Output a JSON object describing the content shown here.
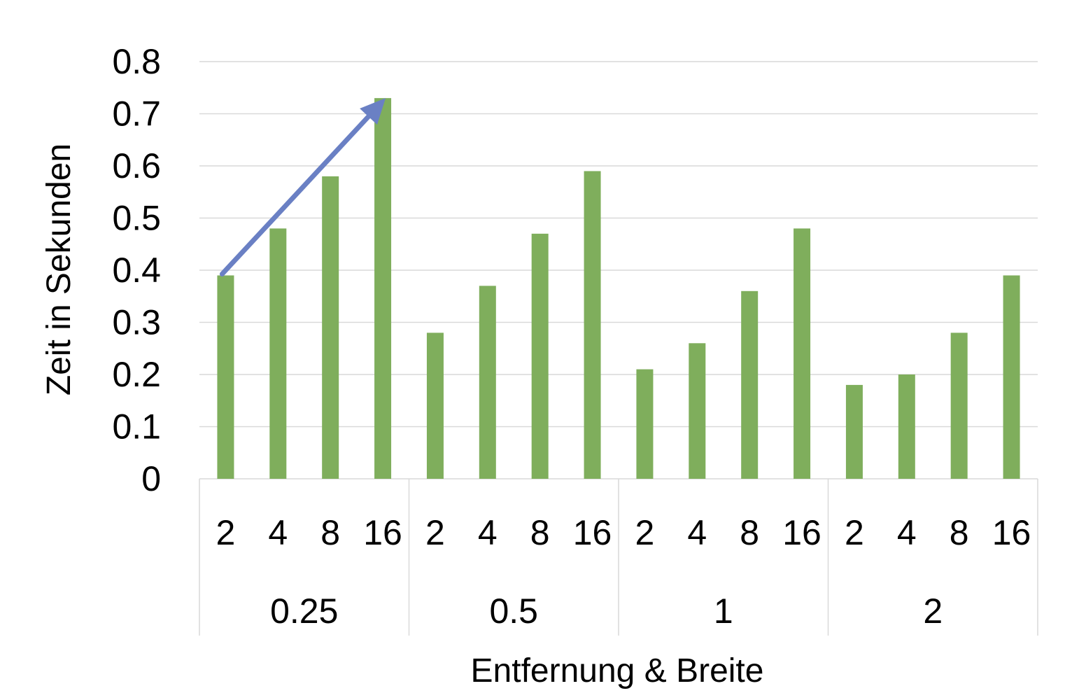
{
  "chart_data": {
    "type": "bar",
    "title": "",
    "xlabel": "Entfernung & Breite",
    "ylabel": "Zeit in Sekunden",
    "ylim": [
      0,
      0.8
    ],
    "yticks": [
      "0",
      "0.1",
      "0.2",
      "0.3",
      "0.4",
      "0.5",
      "0.6",
      "0.7",
      "0.8"
    ],
    "grid": true,
    "legend": "none",
    "groups": [
      {
        "label": "0.25",
        "categories": [
          "2",
          "4",
          "8",
          "16"
        ],
        "values": [
          0.39,
          0.48,
          0.58,
          0.73
        ]
      },
      {
        "label": "0.5",
        "categories": [
          "2",
          "4",
          "8",
          "16"
        ],
        "values": [
          0.28,
          0.37,
          0.47,
          0.59
        ]
      },
      {
        "label": "1",
        "categories": [
          "2",
          "4",
          "8",
          "16"
        ],
        "values": [
          0.21,
          0.26,
          0.36,
          0.48
        ]
      },
      {
        "label": "2",
        "categories": [
          "2",
          "4",
          "8",
          "16"
        ],
        "values": [
          0.18,
          0.2,
          0.28,
          0.39
        ]
      }
    ],
    "annotation": {
      "type": "arrow",
      "from": {
        "group": 0,
        "category": 0
      },
      "to": {
        "group": 0,
        "category": 3
      }
    }
  },
  "colors": {
    "bar": "#7fae5c",
    "arrow": "#6a80c4",
    "grid": "#d9d9d9",
    "text": "#000000"
  }
}
